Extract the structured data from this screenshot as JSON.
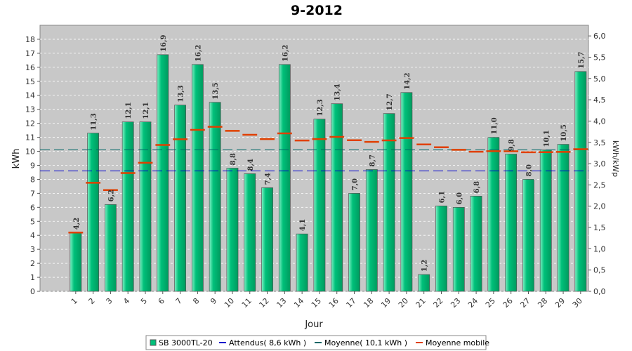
{
  "chart_data": {
    "type": "bar",
    "title": "9-2012",
    "xlabel": "Jour",
    "ylabel": "kWh",
    "y2label": "kWh/kWp",
    "ylim": [
      0,
      19
    ],
    "y2lim": [
      0,
      6.25
    ],
    "yticks": [
      "0",
      "1",
      "2",
      "3",
      "4",
      "5",
      "6",
      "7",
      "8",
      "9",
      "10",
      "11",
      "12",
      "13",
      "14",
      "15",
      "16",
      "17",
      "18"
    ],
    "y2ticks": [
      "0,0",
      "0,5",
      "1,0",
      "1,5",
      "2,0",
      "2,5",
      "3,0",
      "3,5",
      "4,0",
      "4,5",
      "5,0",
      "5,5",
      "6,0"
    ],
    "categories": [
      "1",
      "2",
      "3",
      "4",
      "5",
      "6",
      "7",
      "8",
      "9",
      "10",
      "11",
      "12",
      "13",
      "14",
      "15",
      "16",
      "17",
      "18",
      "19",
      "20",
      "21",
      "22",
      "23",
      "24",
      "25",
      "26",
      "27",
      "28",
      "29",
      "30"
    ],
    "series": [
      {
        "name": "SB 3000TL-20",
        "values": [
          4.2,
          11.3,
          6.2,
          12.1,
          12.1,
          16.9,
          13.3,
          16.2,
          13.5,
          8.8,
          8.4,
          7.4,
          16.2,
          4.1,
          12.3,
          13.4,
          7.0,
          8.7,
          12.7,
          14.2,
          1.2,
          6.1,
          6.0,
          6.8,
          11.0,
          9.8,
          8.0,
          10.1,
          10.5,
          15.7
        ],
        "labels": [
          "4,2",
          "11,3",
          "6,2",
          "12,1",
          "12,1",
          "16,9",
          "13,3",
          "16,2",
          "13,5",
          "8,8",
          "8,4",
          "7,4",
          "16,2",
          "4,1",
          "12,3",
          "13,4",
          "7,0",
          "8,7",
          "12,7",
          "14,2",
          "1,2",
          "6,1",
          "6,0",
          "6,8",
          "11,0",
          "9,8",
          "8,0",
          "10,1",
          "10,5",
          "15,7"
        ],
        "color": "#00c07a"
      },
      {
        "name": "Attendus( 8,6 kWh )",
        "value": 8.6,
        "color": "#0000cc"
      },
      {
        "name": "Moyenne( 10,1 kWh )",
        "value": 10.1,
        "color": "#006666"
      },
      {
        "name": "Moyenne mobile",
        "values": [
          4.2,
          7.75,
          7.23,
          8.45,
          9.18,
          10.45,
          10.86,
          11.53,
          11.75,
          11.46,
          11.18,
          10.87,
          11.28,
          10.77,
          10.87,
          11.03,
          10.79,
          10.67,
          10.78,
          10.95,
          10.49,
          10.29,
          10.11,
          9.97,
          10.01,
          10.0,
          9.93,
          9.94,
          9.96,
          10.15
        ],
        "color": "#e04000"
      }
    ],
    "grid": true,
    "legend_position": "bottom"
  }
}
